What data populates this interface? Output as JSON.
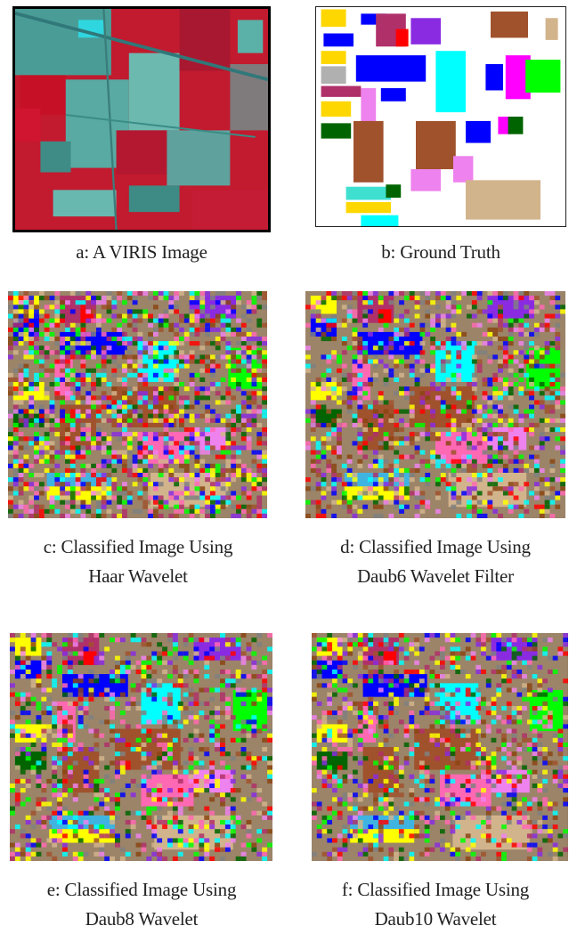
{
  "figure": {
    "panels": [
      {
        "key": "a",
        "caption_lines": [
          "a:  A VIRIS Image"
        ]
      },
      {
        "key": "b",
        "caption_lines": [
          "b:  Ground Truth"
        ]
      },
      {
        "key": "c",
        "caption_lines": [
          "c: Classified Image Using",
          "Haar Wavelet"
        ]
      },
      {
        "key": "d",
        "caption_lines": [
          "d: Classified Image Using",
          "Daub6 Wavelet Filter"
        ]
      },
      {
        "key": "e",
        "caption_lines": [
          "e:  Classified Image Using",
          "Daub8 Wavelet"
        ]
      },
      {
        "key": "f",
        "caption_lines": [
          "f: Classified Image Using",
          "Daub10 Wavelet"
        ]
      }
    ]
  },
  "colors": {
    "class_colors": [
      "#ffff00",
      "#0000ff",
      "#00ffff",
      "#00ff00",
      "#a0522d",
      "#ff69b4",
      "#8b4513",
      "#8a2be2",
      "#006400",
      "#d2b48c",
      "#ee82ee",
      "#ff0000",
      "#808080",
      "#b0306a"
    ],
    "aviris_red": "#d0102a",
    "aviris_cyan": "#4fb8b0"
  }
}
